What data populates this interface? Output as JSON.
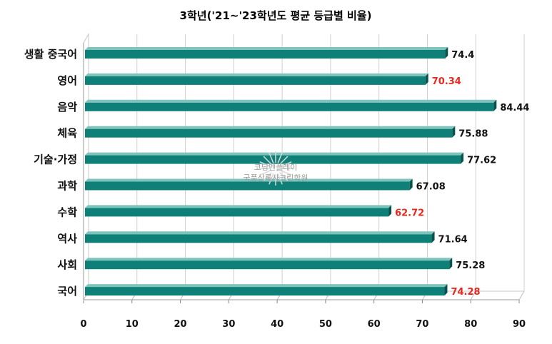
{
  "chart_data": {
    "type": "bar",
    "orientation": "horizontal",
    "title": "3학년('21~'23학년도 평균 등급별 비율)",
    "categories": [
      "생활 중국어",
      "영어",
      "음악",
      "체육",
      "기술·가정",
      "과학",
      "수학",
      "역사",
      "사회",
      "국어"
    ],
    "values": [
      74.4,
      70.34,
      84.44,
      75.88,
      77.62,
      67.08,
      62.72,
      71.64,
      75.28,
      74.28
    ],
    "value_labels": [
      "74.4",
      "70.34",
      "84.44",
      "75.88",
      "77.62",
      "67.08",
      "62.72",
      "71.64",
      "75.28",
      "74.28"
    ],
    "highlighted": [
      false,
      true,
      false,
      false,
      false,
      false,
      true,
      false,
      false,
      true
    ],
    "xlim": [
      0,
      90
    ],
    "xticks": [
      "0",
      "10",
      "20",
      "30",
      "40",
      "50",
      "60",
      "70",
      "80",
      "90"
    ],
    "grid": true,
    "bar_color": "#0f8078",
    "bar_top_color": "#7cc4bc",
    "highlight_color": "#e8281e",
    "label_color": "#111111"
  },
  "watermark": {
    "line1": "코딩엔플레이",
    "line2": "국풍상록사크린학원"
  }
}
